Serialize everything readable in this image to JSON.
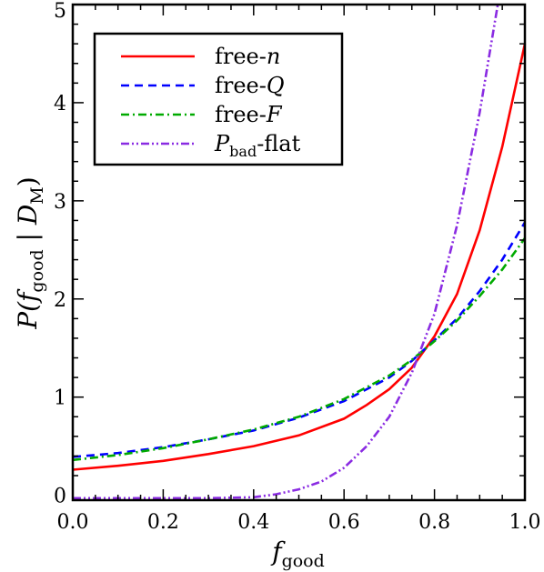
{
  "chart_data": {
    "type": "line",
    "xlabel": {
      "main": "f",
      "sub": "good"
    },
    "ylabel": {
      "pre": "P(",
      "f": "f",
      "fsub": "good",
      "bar": " | ",
      "D": "D",
      "Dsub": "M",
      "post": ")"
    },
    "xlim": [
      0.0,
      1.0
    ],
    "ylim": [
      -0.05,
      5.0
    ],
    "x_ticks": [
      0.0,
      0.2,
      0.4,
      0.6,
      0.8,
      1.0
    ],
    "x_tick_labels": [
      "0.0",
      "0.2",
      "0.4",
      "0.6",
      "0.8",
      "1.0"
    ],
    "y_ticks": [
      0,
      1,
      2,
      3,
      4,
      5
    ],
    "y_tick_labels": [
      "0",
      "1",
      "2",
      "3",
      "4",
      "5"
    ],
    "legend_position": "top-left",
    "series": [
      {
        "name": "free-n",
        "legend": {
          "main": "free-",
          "italic": "n",
          "sub": ""
        },
        "color": "#ff0000",
        "dash": "solid",
        "x": [
          0.0,
          0.1,
          0.2,
          0.3,
          0.4,
          0.5,
          0.6,
          0.65,
          0.7,
          0.75,
          0.8,
          0.85,
          0.9,
          0.95,
          1.0
        ],
        "y": [
          0.26,
          0.3,
          0.35,
          0.42,
          0.5,
          0.61,
          0.78,
          0.92,
          1.08,
          1.3,
          1.62,
          2.05,
          2.7,
          3.55,
          4.6
        ]
      },
      {
        "name": "free-Q",
        "legend": {
          "main": "free-",
          "italic": "Q",
          "sub": ""
        },
        "color": "#0000ff",
        "dash": "dashed",
        "x": [
          0.0,
          0.1,
          0.2,
          0.3,
          0.4,
          0.5,
          0.6,
          0.7,
          0.75,
          0.8,
          0.85,
          0.9,
          0.95,
          1.0
        ],
        "y": [
          0.39,
          0.43,
          0.49,
          0.57,
          0.66,
          0.79,
          0.96,
          1.2,
          1.37,
          1.58,
          1.8,
          2.08,
          2.4,
          2.78
        ]
      },
      {
        "name": "free-F",
        "legend": {
          "main": "free-",
          "italic": "F",
          "sub": ""
        },
        "color": "#00aa00",
        "dash": "dashdot",
        "x": [
          0.0,
          0.1,
          0.2,
          0.3,
          0.4,
          0.5,
          0.6,
          0.7,
          0.75,
          0.8,
          0.85,
          0.9,
          0.95,
          1.0
        ],
        "y": [
          0.36,
          0.41,
          0.48,
          0.57,
          0.67,
          0.8,
          0.98,
          1.22,
          1.38,
          1.57,
          1.78,
          2.03,
          2.3,
          2.62
        ]
      },
      {
        "name": "Pbad-flat",
        "legend": {
          "main": "",
          "italic": "P",
          "sub": "bad",
          "suffix": "-flat"
        },
        "color": "#8a2be2",
        "dash": "dashdotdot",
        "x": [
          0.0,
          0.3,
          0.4,
          0.45,
          0.5,
          0.55,
          0.6,
          0.65,
          0.7,
          0.75,
          0.8,
          0.85,
          0.9,
          0.94
        ],
        "y": [
          -0.03,
          -0.03,
          -0.02,
          0.01,
          0.06,
          0.14,
          0.28,
          0.5,
          0.8,
          1.25,
          1.85,
          2.75,
          3.9,
          5.0
        ]
      }
    ]
  }
}
